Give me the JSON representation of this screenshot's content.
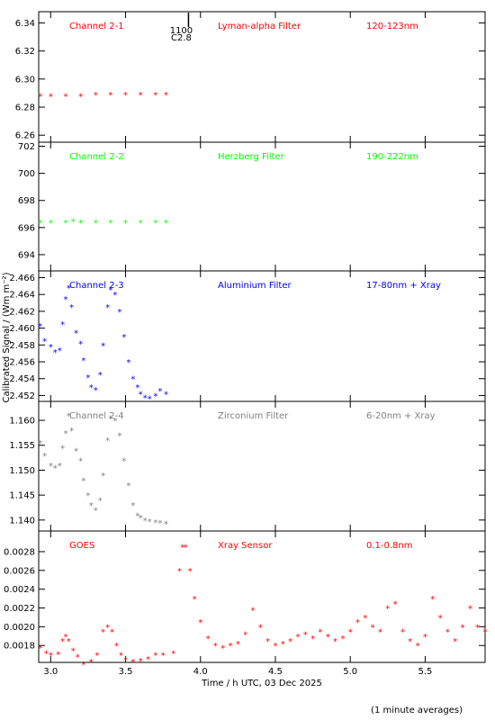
{
  "figure": {
    "ylabel": "Calibrated Signal / (Wm m⁻²)",
    "xlabel": "Time / h UTC, 03 Dec 2025",
    "footnote": "(1 minute averages)",
    "marker_top": "1100",
    "marker_bottom": "C2.8",
    "marker_x": 3.92
  },
  "chart_data": [
    {
      "type": "scatter",
      "channel": "Channel 2-1",
      "filter": "Lyman-alpha Filter",
      "band": "120-123nm",
      "color": "#ff0000",
      "xlim": [
        2.92,
        5.9
      ],
      "ylim": [
        6.255,
        6.348
      ],
      "yticks": [
        6.26,
        6.28,
        6.3,
        6.32,
        6.34
      ],
      "ytick_labels": [
        "6.26",
        "6.28",
        "6.30",
        "6.32",
        "6.34"
      ],
      "x": [
        2.93,
        3.0,
        3.1,
        3.2,
        3.3,
        3.4,
        3.5,
        3.6,
        3.7,
        3.77
      ],
      "y": [
        6.288,
        6.288,
        6.288,
        6.288,
        6.289,
        6.289,
        6.289,
        6.289,
        6.289,
        6.289
      ]
    },
    {
      "type": "scatter",
      "channel": "Channel 2-2",
      "filter": "Herzberg Filter",
      "band": "190-222nm",
      "color": "#00ff00",
      "xlim": [
        2.92,
        5.9
      ],
      "ylim": [
        692.8,
        702.3
      ],
      "yticks": [
        694,
        696,
        698,
        700,
        702
      ],
      "ytick_labels": [
        "694",
        "696",
        "698",
        "700",
        "702"
      ],
      "x": [
        2.93,
        3.0,
        3.1,
        3.15,
        3.2,
        3.3,
        3.4,
        3.5,
        3.6,
        3.7,
        3.77
      ],
      "y": [
        696.4,
        696.4,
        696.4,
        696.5,
        696.4,
        696.4,
        696.4,
        696.4,
        696.4,
        696.4,
        696.4
      ]
    },
    {
      "type": "scatter",
      "channel": "Channel 2-3",
      "filter": "Aluminium Filter",
      "band": "17-80nm + Xray",
      "color": "#0000ff",
      "xlim": [
        2.92,
        5.9
      ],
      "ylim": [
        2.4513,
        2.4668
      ],
      "yticks": [
        2.452,
        2.454,
        2.456,
        2.458,
        2.46,
        2.462,
        2.464,
        2.466
      ],
      "ytick_labels": [
        "2.452",
        "2.454",
        "2.456",
        "2.458",
        "2.460",
        "2.462",
        "2.464",
        "2.466"
      ],
      "x": [
        2.93,
        2.96,
        3.0,
        3.03,
        3.06,
        3.08,
        3.1,
        3.12,
        3.14,
        3.17,
        3.2,
        3.22,
        3.25,
        3.27,
        3.3,
        3.33,
        3.35,
        3.38,
        3.4,
        3.43,
        3.46,
        3.49,
        3.52,
        3.55,
        3.58,
        3.6,
        3.63,
        3.66,
        3.7,
        3.73,
        3.77
      ],
      "y": [
        2.4603,
        2.4585,
        2.4578,
        2.4572,
        2.4574,
        2.4605,
        2.4635,
        2.4648,
        2.4625,
        2.4595,
        2.4582,
        2.4562,
        2.4542,
        2.453,
        2.4527,
        2.4545,
        2.458,
        2.4625,
        2.4646,
        2.464,
        2.462,
        2.459,
        2.456,
        2.454,
        2.453,
        2.4522,
        2.4518,
        2.4517,
        2.452,
        2.4526,
        2.4522
      ]
    },
    {
      "type": "scatter",
      "channel": "Channel 2-4",
      "filter": "Zirconium Filter",
      "band": "6-20nm + Xray",
      "color": "#808080",
      "xlim": [
        2.92,
        5.9
      ],
      "ylim": [
        1.1378,
        1.1638
      ],
      "yticks": [
        1.14,
        1.145,
        1.15,
        1.155,
        1.16
      ],
      "ytick_labels": [
        "1.140",
        "1.145",
        "1.150",
        "1.155",
        "1.160"
      ],
      "x": [
        2.93,
        2.96,
        3.0,
        3.03,
        3.06,
        3.08,
        3.1,
        3.12,
        3.14,
        3.17,
        3.2,
        3.22,
        3.25,
        3.27,
        3.3,
        3.33,
        3.35,
        3.38,
        3.4,
        3.43,
        3.46,
        3.49,
        3.52,
        3.55,
        3.58,
        3.6,
        3.63,
        3.66,
        3.7,
        3.73,
        3.77
      ],
      "y": [
        1.1555,
        1.153,
        1.151,
        1.1505,
        1.151,
        1.1545,
        1.1575,
        1.161,
        1.158,
        1.154,
        1.152,
        1.148,
        1.145,
        1.143,
        1.142,
        1.144,
        1.149,
        1.156,
        1.1605,
        1.16,
        1.157,
        1.152,
        1.147,
        1.143,
        1.141,
        1.1405,
        1.14,
        1.1398,
        1.1396,
        1.1395,
        1.1393
      ]
    },
    {
      "type": "scatter",
      "channel": "GOES",
      "filter": "Xray Sensor",
      "band": "0.1-0.8nm",
      "color": "#ff0000",
      "xlim": [
        2.92,
        5.9
      ],
      "ylim": [
        0.00162,
        0.00302
      ],
      "yticks": [
        0.0018,
        0.002,
        0.0022,
        0.0024,
        0.0026,
        0.0028
      ],
      "ytick_labels": [
        "0.0018",
        "0.0020",
        "0.0022",
        "0.0024",
        "0.0026",
        "0.0028"
      ],
      "x": [
        2.93,
        2.97,
        3.0,
        3.05,
        3.08,
        3.1,
        3.12,
        3.15,
        3.18,
        3.22,
        3.27,
        3.31,
        3.35,
        3.38,
        3.41,
        3.44,
        3.47,
        3.5,
        3.55,
        3.6,
        3.65,
        3.7,
        3.75,
        3.82,
        3.86,
        3.88,
        3.9,
        3.93,
        3.96,
        4.0,
        4.05,
        4.1,
        4.15,
        4.2,
        4.25,
        4.3,
        4.35,
        4.4,
        4.45,
        4.5,
        4.55,
        4.6,
        4.65,
        4.7,
        4.75,
        4.8,
        4.85,
        4.9,
        4.95,
        5.0,
        5.05,
        5.1,
        5.15,
        5.2,
        5.25,
        5.3,
        5.35,
        5.4,
        5.45,
        5.5,
        5.55,
        5.6,
        5.65,
        5.7,
        5.75,
        5.8,
        5.85,
        5.9
      ],
      "y": [
        0.00178,
        0.00172,
        0.0017,
        0.00171,
        0.00185,
        0.0019,
        0.00185,
        0.00175,
        0.00168,
        0.0016,
        0.00163,
        0.0017,
        0.00195,
        0.002,
        0.00195,
        0.0018,
        0.0017,
        0.00165,
        0.00163,
        0.00164,
        0.00166,
        0.0017,
        0.0017,
        0.00172,
        0.0026,
        0.00285,
        0.00285,
        0.0026,
        0.0023,
        0.00205,
        0.00188,
        0.0018,
        0.00178,
        0.0018,
        0.00182,
        0.00192,
        0.00218,
        0.002,
        0.00185,
        0.0018,
        0.00182,
        0.00185,
        0.0019,
        0.00192,
        0.00188,
        0.00195,
        0.0019,
        0.00185,
        0.00188,
        0.00195,
        0.00205,
        0.0021,
        0.002,
        0.00195,
        0.0022,
        0.00225,
        0.00195,
        0.00185,
        0.0018,
        0.0019,
        0.0023,
        0.0021,
        0.00195,
        0.00185,
        0.002,
        0.0022,
        0.002,
        0.00195
      ]
    }
  ]
}
